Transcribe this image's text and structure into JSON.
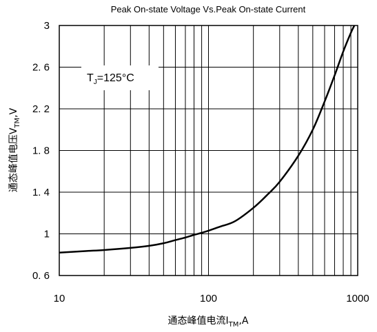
{
  "chart_data": {
    "type": "line",
    "title": "Peak On-state Voltage Vs.Peak On-state Current",
    "xlabel": {
      "main": "通态峰值电流I",
      "sub": "TM",
      "suffix": ",A"
    },
    "ylabel": {
      "main": "通态峰值电压V",
      "sub": "TM",
      "suffix": ",V"
    },
    "xscale": "log",
    "xlim": [
      10,
      1000
    ],
    "ylim": [
      0.6,
      3.0
    ],
    "xticks": [
      10,
      100,
      1000
    ],
    "xtick_labels": [
      "10",
      "100",
      "1000"
    ],
    "yticks": [
      0.6,
      1.0,
      1.4,
      1.8,
      2.2,
      2.6,
      3.0
    ],
    "ytick_labels": [
      "0. 6",
      "1",
      "1. 4",
      "1. 8",
      "2. 2",
      "2. 6",
      "3"
    ],
    "grid": true,
    "annotation": {
      "main": "T",
      "sub": "J",
      "suffix": "=125°C"
    },
    "series": [
      {
        "x": [
          10,
          15,
          20,
          30,
          40,
          50,
          60,
          70,
          80,
          90,
          100,
          120,
          150,
          200,
          250,
          300,
          400,
          500,
          600,
          700,
          800,
          900,
          950
        ],
        "y": [
          0.82,
          0.835,
          0.845,
          0.865,
          0.885,
          0.91,
          0.94,
          0.965,
          0.99,
          1.01,
          1.03,
          1.07,
          1.12,
          1.25,
          1.38,
          1.5,
          1.75,
          2.0,
          2.27,
          2.52,
          2.75,
          2.93,
          3.0
        ]
      }
    ],
    "line_color": "#000000"
  }
}
